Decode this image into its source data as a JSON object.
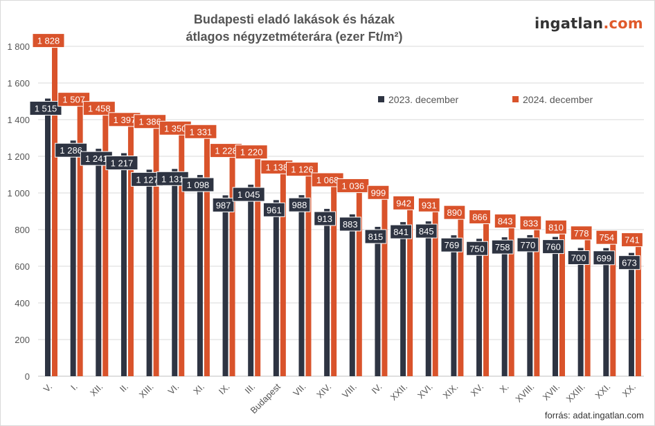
{
  "title_line1": "Budapesti eladó lakások és házak",
  "title_line2": "átlagos négyzetméterára (ezer Ft/m²)",
  "logo_part1": "ingatlan",
  "logo_part2": ".com",
  "source": "forrás: adat.ingatlan.com",
  "colors": {
    "series_2023": "#2e3442",
    "series_2024": "#d9532b",
    "grid": "#d9d9d9",
    "axis_text": "#555555"
  },
  "chart_data": {
    "type": "bar",
    "title": "Budapesti eladó lakások és házak átlagos négyzetméterára (ezer Ft/m²)",
    "categories": [
      "V.",
      "I.",
      "XII.",
      "II.",
      "XIII.",
      "VI.",
      "XI.",
      "IX.",
      "III.",
      "Budapest",
      "VII.",
      "XIV.",
      "VIII.",
      "IV.",
      "XXII.",
      "XVI.",
      "XIX.",
      "XV.",
      "X.",
      "XVIII.",
      "XVII.",
      "XXIII.",
      "XXI.",
      "XX."
    ],
    "series": [
      {
        "name": "2023. december",
        "values": [
          1515,
          1286,
          1241,
          1217,
          1127,
          1131,
          1098,
          987,
          1045,
          961,
          988,
          913,
          883,
          815,
          841,
          845,
          769,
          750,
          758,
          770,
          760,
          700,
          699,
          673
        ]
      },
      {
        "name": "2024. december",
        "values": [
          1828,
          1507,
          1458,
          1397,
          1386,
          1350,
          1331,
          1228,
          1220,
          1138,
          1126,
          1068,
          1036,
          999,
          942,
          931,
          890,
          866,
          843,
          833,
          810,
          778,
          754,
          741
        ]
      }
    ],
    "data_labels": {
      "2023": [
        "1 515",
        "1 286",
        "1 241",
        "1 217",
        "1 127",
        "1 131",
        "1 098",
        "987",
        "1 045",
        "961",
        "988",
        "913",
        "883",
        "815",
        "841",
        "845",
        "769",
        "750",
        "758",
        "770",
        "760",
        "700",
        "699",
        "673"
      ],
      "2024": [
        "1 828",
        "1 507",
        "1 458",
        "1 397",
        "1 386",
        "1 350",
        "1 331",
        "1 228",
        "1 220",
        "1 138",
        "1 126",
        "1 068",
        "1 036",
        "999",
        "942",
        "931",
        "890",
        "866",
        "843",
        "833",
        "810",
        "778",
        "754",
        "741"
      ]
    },
    "y_ticks": [
      0,
      200,
      400,
      600,
      800,
      1000,
      1200,
      1400,
      1600,
      1800
    ],
    "y_tick_labels": [
      "0",
      "200",
      "400",
      "600",
      "800",
      "1 000",
      "1 200",
      "1 400",
      "1 600",
      "1 800"
    ],
    "ylim": [
      0,
      1900
    ],
    "grid": true,
    "legend_position": "top-right"
  }
}
